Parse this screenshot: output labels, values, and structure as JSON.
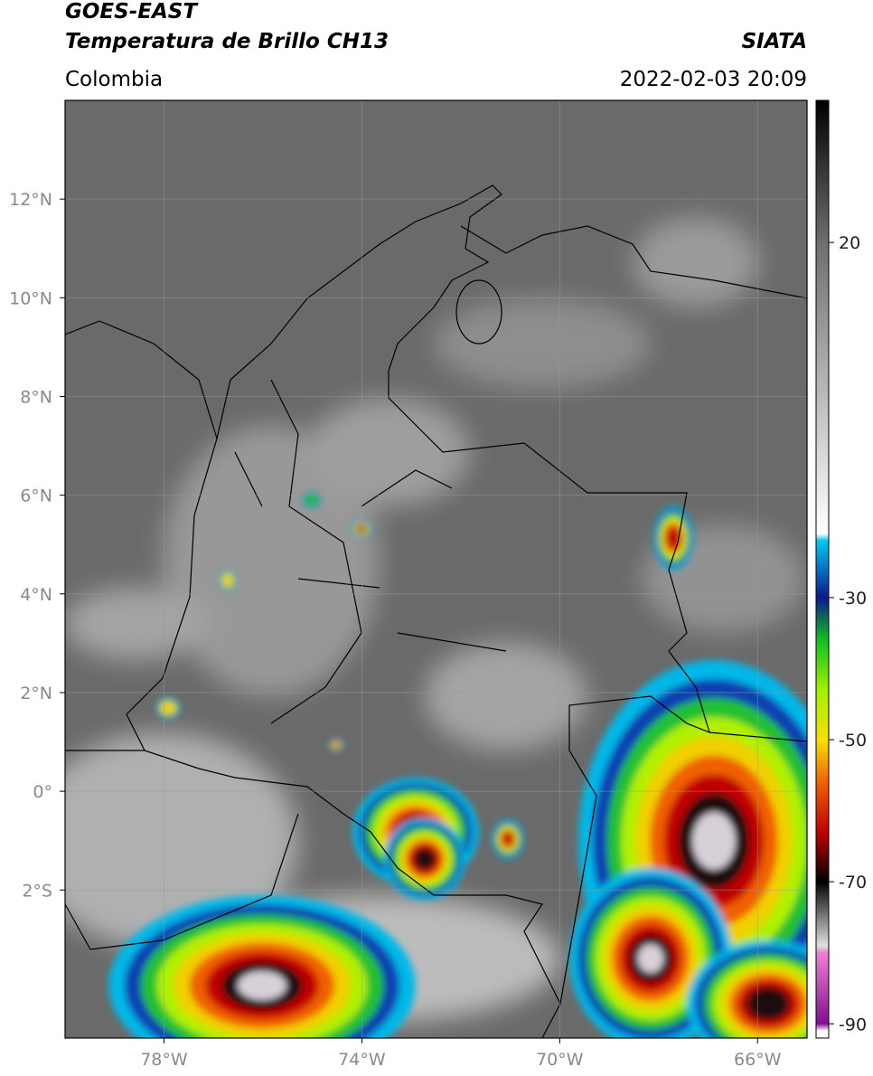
{
  "header": {
    "title": "GOES-EAST",
    "subtitle": "Temperatura de Brillo CH13",
    "source": "SIATA",
    "region": "Colombia",
    "datetime": "2022-02-03 20:09"
  },
  "map": {
    "xlim": [
      -80,
      -65
    ],
    "ylim": [
      -5,
      14
    ],
    "xticks": [
      {
        "value": -78,
        "label": "78°W"
      },
      {
        "value": -74,
        "label": "74°W"
      },
      {
        "value": -70,
        "label": "70°W"
      },
      {
        "value": -66,
        "label": "66°W"
      }
    ],
    "yticks": [
      {
        "value": -2,
        "label": "2°S"
      },
      {
        "value": 0,
        "label": "0°"
      },
      {
        "value": 2,
        "label": "2°N"
      },
      {
        "value": 4,
        "label": "4°N"
      },
      {
        "value": 6,
        "label": "6°N"
      },
      {
        "value": 8,
        "label": "8°N"
      },
      {
        "value": 10,
        "label": "10°N"
      },
      {
        "value": 12,
        "label": "12°N"
      }
    ],
    "grid": true
  },
  "colorbar": {
    "lim": [
      40,
      -92
    ],
    "ticks": [
      20,
      -30,
      -50,
      -70,
      -90
    ],
    "stops": [
      {
        "value": 40,
        "color": "#000000"
      },
      {
        "value": 20,
        "color": "#6e6e6e"
      },
      {
        "value": -21,
        "color": "#ffffff"
      },
      {
        "value": -22,
        "color": "#00c8f0"
      },
      {
        "value": -30,
        "color": "#0a1a8c"
      },
      {
        "value": -36,
        "color": "#10c020"
      },
      {
        "value": -43,
        "color": "#a0f000"
      },
      {
        "value": -50,
        "color": "#f8e000"
      },
      {
        "value": -56,
        "color": "#f06000"
      },
      {
        "value": -63,
        "color": "#c00000"
      },
      {
        "value": -70,
        "color": "#000000"
      },
      {
        "value": -79,
        "color": "#e0e0e0"
      },
      {
        "value": -80,
        "color": "#f080d0"
      },
      {
        "value": -90,
        "color": "#801090"
      },
      {
        "value": -91,
        "color": "#ffffff"
      }
    ]
  }
}
